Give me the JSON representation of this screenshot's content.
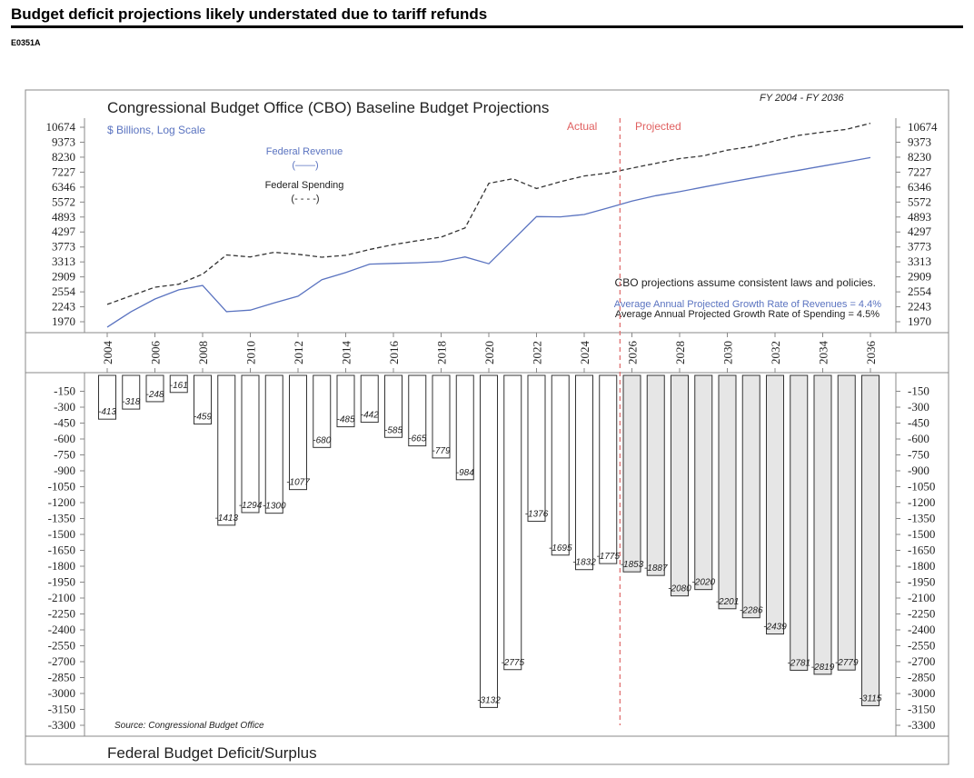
{
  "header": {
    "title": "Budget deficit projections likely understated due to tariff refunds",
    "code": "E0351A"
  },
  "chart_data": [
    {
      "type": "line",
      "title": "Congressional Budget Office (CBO) Baseline Budget Projections",
      "range_label": "FY 2004 - FY 2036",
      "unit_label": "$ Billions, Log Scale",
      "log_scale": true,
      "y_ticks": [
        10674,
        9373,
        8230,
        7227,
        6346,
        5572,
        4893,
        4297,
        3773,
        3313,
        2909,
        2554,
        2243,
        1970
      ],
      "x_ticks": [
        2004,
        2006,
        2008,
        2010,
        2012,
        2014,
        2016,
        2018,
        2020,
        2022,
        2024,
        2026,
        2028,
        2030,
        2032,
        2034,
        2036
      ],
      "ylim": [
        1970,
        10674
      ],
      "xlim": [
        2004,
        2036
      ],
      "actual_label": "Actual",
      "projected_label": "Projected",
      "divider_year": 2025.5,
      "legend": {
        "revenue": "Federal Revenue",
        "revenue_key": "(——)",
        "spending": "Federal Spending",
        "spending_key": "(- - - -)"
      },
      "notes": {
        "laws": "CBO projections assume consistent laws and policies.",
        "revenue_growth": "Average Annual Projected Growth Rate of Revenues = 4.4%",
        "spending_growth": "Average Annual Projected Growth Rate of Spending = 4.5%"
      },
      "series": [
        {
          "name": "Federal Revenue",
          "color": "#5a73c0",
          "style": "solid",
          "x": [
            2004,
            2005,
            2006,
            2007,
            2008,
            2009,
            2010,
            2011,
            2012,
            2013,
            2014,
            2015,
            2016,
            2017,
            2018,
            2019,
            2020,
            2021,
            2022,
            2023,
            2024,
            2025,
            2026,
            2027,
            2028,
            2029,
            2030,
            2031,
            2032,
            2033,
            2034,
            2035,
            2036
          ],
          "values": [
            1880,
            2150,
            2400,
            2600,
            2700,
            2150,
            2180,
            2320,
            2460,
            2840,
            3020,
            3250,
            3270,
            3290,
            3320,
            3460,
            3260,
            4000,
            4910,
            4900,
            5000,
            5300,
            5620,
            5890,
            6100,
            6350,
            6600,
            6850,
            7100,
            7350,
            7620,
            7900,
            8200
          ]
        },
        {
          "name": "Federal Spending",
          "color": "#333333",
          "style": "dashed",
          "x": [
            2004,
            2005,
            2006,
            2007,
            2008,
            2009,
            2010,
            2011,
            2012,
            2013,
            2014,
            2015,
            2016,
            2017,
            2018,
            2019,
            2020,
            2021,
            2022,
            2023,
            2024,
            2025,
            2026,
            2027,
            2028,
            2029,
            2030,
            2031,
            2032,
            2033,
            2034,
            2035,
            2036
          ],
          "values": [
            2290,
            2470,
            2660,
            2730,
            2980,
            3520,
            3460,
            3600,
            3540,
            3450,
            3510,
            3690,
            3850,
            3980,
            4110,
            4450,
            6560,
            6820,
            6270,
            6650,
            6990,
            7170,
            7480,
            7800,
            8130,
            8330,
            8750,
            9030,
            9480,
            9950,
            10230,
            10480,
            11050
          ]
        }
      ]
    },
    {
      "type": "bar",
      "title": "Federal Budget Deficit/Surplus",
      "source": "Source: Congressional Budget Office",
      "y_ticks": [
        -150,
        -300,
        -450,
        -600,
        -750,
        -900,
        -1050,
        -1200,
        -1350,
        -1500,
        -1650,
        -1800,
        -1950,
        -2100,
        -2250,
        -2400,
        -2550,
        -2700,
        -2850,
        -3000,
        -3150,
        -3300
      ],
      "ylim": [
        -3300,
        0
      ],
      "categories": [
        2004,
        2005,
        2006,
        2007,
        2008,
        2009,
        2010,
        2011,
        2012,
        2013,
        2014,
        2015,
        2016,
        2017,
        2018,
        2019,
        2020,
        2021,
        2022,
        2023,
        2024,
        2025,
        2026,
        2027,
        2028,
        2029,
        2030,
        2031,
        2032,
        2033,
        2034,
        2035,
        2036
      ],
      "values": [
        -413,
        -318,
        -248,
        -161,
        -459,
        -1413,
        -1294,
        -1300,
        -1077,
        -680,
        -485,
        -442,
        -585,
        -665,
        -779,
        -984,
        -3132,
        -2775,
        -1376,
        -1695,
        -1832,
        -1775,
        -1853,
        -1887,
        -2080,
        -2020,
        -2201,
        -2286,
        -2439,
        -2781,
        -2819,
        -2779,
        -3115
      ],
      "labels": [
        "-413",
        "-318",
        "-248",
        "-161",
        "-459",
        "-1413",
        "-1294",
        "-1300",
        "-1077",
        "-680",
        "-485",
        "-442",
        "-585",
        "-665",
        "-779",
        "-984",
        "-3132",
        "-2775",
        "-1376",
        "-1695",
        "-1832",
        "-1775",
        "-1853",
        "-1887",
        "-2080",
        "-2020",
        "-2201",
        "-2286",
        "-2439",
        "-2781",
        "-2819",
        "-2779",
        "-3115"
      ],
      "projected_from": 2026,
      "actual_fill": "#ffffff",
      "projected_fill": "#e6e6e6"
    }
  ]
}
